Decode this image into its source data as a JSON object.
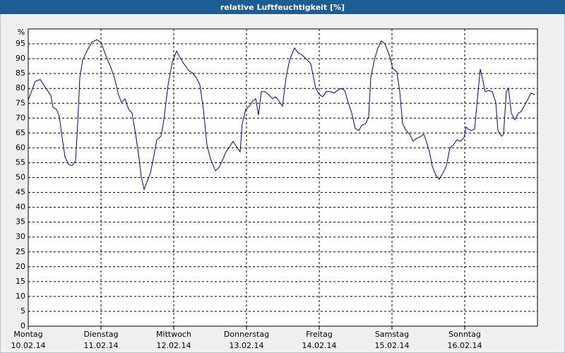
{
  "chart_data": {
    "type": "line",
    "title": "relative Luftfeuchtigkeit [%]",
    "y_label": "%",
    "xlim": [
      0,
      7
    ],
    "ylim": [
      0,
      100
    ],
    "xticks": [
      {
        "value": 0,
        "label": "Montag",
        "sublabel": "10.02.14"
      },
      {
        "value": 1,
        "label": "Dienstag",
        "sublabel": "11.02.14"
      },
      {
        "value": 2,
        "label": "Mittwoch",
        "sublabel": "12.02.14"
      },
      {
        "value": 3,
        "label": "Donnerstag",
        "sublabel": "13.02.14"
      },
      {
        "value": 4,
        "label": "Freitag",
        "sublabel": "14.02.14"
      },
      {
        "value": 5,
        "label": "Samstag",
        "sublabel": "15.02.14"
      },
      {
        "value": 6,
        "label": "Sonntag",
        "sublabel": "16.02.14"
      }
    ],
    "yticks": [
      0,
      5,
      10,
      15,
      20,
      25,
      30,
      35,
      40,
      45,
      50,
      55,
      60,
      65,
      70,
      75,
      80,
      85,
      90,
      95
    ],
    "grid": true,
    "series": [
      {
        "color": "#0000a0",
        "x": [
          0,
          0.097,
          0.165,
          0.243,
          0.311,
          0.34,
          0.388,
          0.427,
          0.466,
          0.505,
          0.553,
          0.602,
          0.65,
          0.68,
          0.709,
          0.748,
          0.806,
          0.874,
          0.942,
          1.0,
          1.068,
          1.136,
          1.184,
          1.243,
          1.282,
          1.33,
          1.379,
          1.427,
          1.476,
          1.524,
          1.553,
          1.592,
          1.631,
          1.68,
          1.728,
          1.767,
          1.825,
          1.864,
          1.922,
          1.981,
          2.039,
          2.087,
          2.136,
          2.204,
          2.252,
          2.311,
          2.359,
          2.408,
          2.456,
          2.505,
          2.573,
          2.621,
          2.67,
          2.718,
          2.767,
          2.816,
          2.864,
          2.913,
          2.942,
          2.99,
          3.039,
          3.087,
          3.126,
          3.165,
          3.204,
          3.252,
          3.301,
          3.359,
          3.398,
          3.447,
          3.495,
          3.544,
          3.592,
          3.66,
          3.709,
          3.767,
          3.816,
          3.883,
          3.951,
          4.0,
          4.049,
          4.097,
          4.155,
          4.204,
          4.252,
          4.301,
          4.35,
          4.398,
          4.447,
          4.495,
          4.544,
          4.583,
          4.641,
          4.68,
          4.709,
          4.757,
          4.806,
          4.854,
          4.903,
          4.971,
          5.01,
          5.068,
          5.107,
          5.146,
          5.194,
          5.243,
          5.291,
          5.34,
          5.388,
          5.437,
          5.466,
          5.515,
          5.553,
          5.602,
          5.65,
          5.699,
          5.748,
          5.796,
          5.845,
          5.893,
          5.942,
          5.99,
          6.019,
          6.049,
          6.087,
          6.136,
          6.175,
          6.214,
          6.252,
          6.282,
          6.33,
          6.379,
          6.427,
          6.456,
          6.505,
          6.534,
          6.573,
          6.602,
          6.641,
          6.689,
          6.738,
          6.777,
          6.845,
          6.913,
          6.961
        ],
        "values": [
          76,
          82.4,
          83,
          80,
          77.7,
          73.6,
          73,
          70.5,
          63.4,
          57,
          54.4,
          54,
          55.6,
          68,
          83.6,
          89.5,
          92.6,
          95.5,
          96.4,
          95.5,
          91,
          87,
          83.6,
          77.7,
          75.3,
          76.5,
          73,
          71.7,
          64.6,
          56.3,
          50.4,
          46,
          48.5,
          51.5,
          57.5,
          62.7,
          63.9,
          69.4,
          81.2,
          88.8,
          92.6,
          90.3,
          88.4,
          86,
          85.3,
          83.6,
          81.2,
          73,
          61,
          56.3,
          52.3,
          53.4,
          55.8,
          58.7,
          60.3,
          62.2,
          60.3,
          58.7,
          68.2,
          73,
          74,
          75.8,
          76.5,
          71,
          78.9,
          78.9,
          78,
          76.5,
          77.2,
          75.8,
          74,
          83.6,
          89.5,
          93.6,
          92,
          91.2,
          90,
          88.4,
          80,
          78,
          77.2,
          78.9,
          78.9,
          78.4,
          79.3,
          80,
          79.3,
          75.3,
          71.7,
          66.5,
          65.8,
          67.5,
          68.2,
          70.5,
          83.6,
          89.5,
          93.6,
          96,
          95,
          90.7,
          86.7,
          85.5,
          78.9,
          68.2,
          65.8,
          64.6,
          62.2,
          63.2,
          63.7,
          64.6,
          62.7,
          58.7,
          53.9,
          50.8,
          49.4,
          51.5,
          53.9,
          59.9,
          61,
          62.7,
          62.2,
          63.4,
          67,
          66.3,
          65.8,
          66.3,
          76.5,
          86.5,
          82.4,
          78.9,
          79.3,
          78.9,
          75.3,
          65.8,
          63.9,
          64.6,
          78.9,
          80,
          71.7,
          69.4,
          71.7,
          72.2,
          75.3,
          78.4,
          77.9
        ]
      }
    ]
  }
}
